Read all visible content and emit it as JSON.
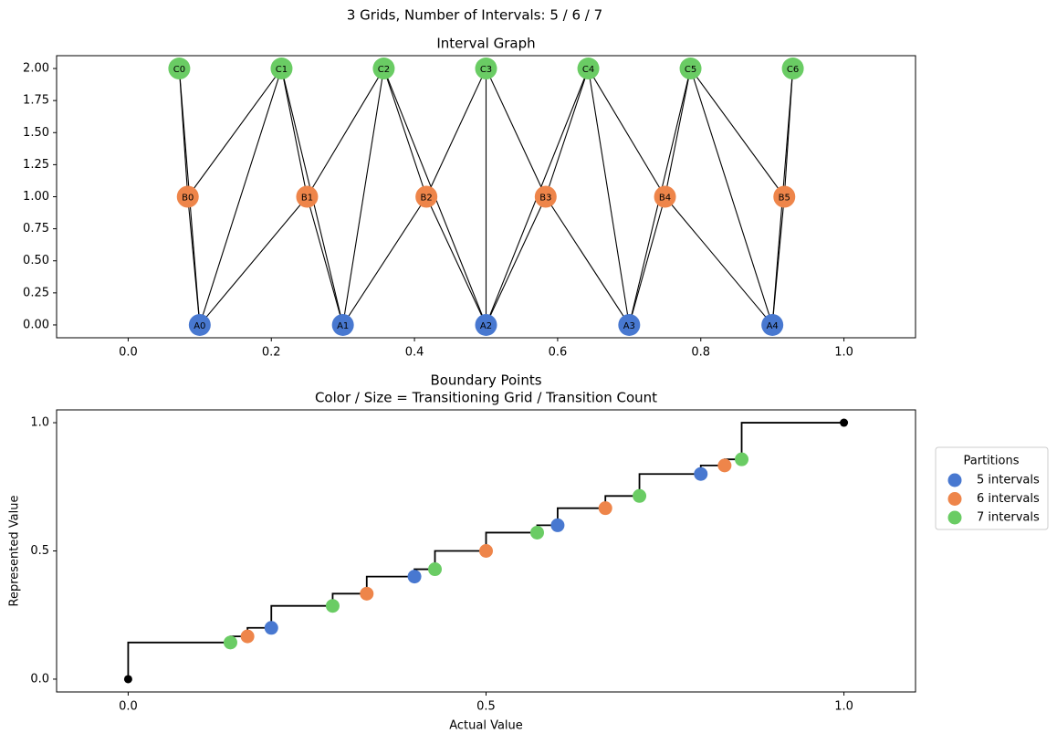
{
  "title": "3 Grids, Number of Intervals: 5 / 6 / 7",
  "chart_data": [
    {
      "type": "graph",
      "title": "Interval Graph",
      "xlim": [
        -0.1,
        1.1
      ],
      "xticks": [
        {
          "value": 0,
          "label": "0.0"
        },
        0.2,
        0.4,
        0.6,
        0.8,
        {
          "value": 1,
          "label": "1.0"
        }
      ],
      "ylim": [
        -0.1,
        2.1
      ],
      "yticks": [
        {
          "value": 0,
          "label": "0.00"
        },
        {
          "value": 0.25,
          "label": "0.25"
        },
        {
          "value": 0.5,
          "label": "0.50"
        },
        {
          "value": 0.75,
          "label": "0.75"
        },
        {
          "value": 1,
          "label": "1.00"
        },
        {
          "value": 1.25,
          "label": "1.25"
        },
        {
          "value": 1.5,
          "label": "1.50"
        },
        {
          "value": 1.75,
          "label": "1.75"
        },
        {
          "value": 2,
          "label": "2.00"
        }
      ],
      "nodes": [
        {
          "label": "A0",
          "x": 0.1,
          "y": 0,
          "color": "#4878d0"
        },
        {
          "label": "A1",
          "x": 0.3,
          "y": 0,
          "color": "#4878d0"
        },
        {
          "label": "A2",
          "x": 0.5,
          "y": 0,
          "color": "#4878d0"
        },
        {
          "label": "A3",
          "x": 0.7,
          "y": 0,
          "color": "#4878d0"
        },
        {
          "label": "A4",
          "x": 0.9,
          "y": 0,
          "color": "#4878d0"
        },
        {
          "label": "B0",
          "x": 0.0833,
          "y": 1,
          "color": "#ee854a"
        },
        {
          "label": "B1",
          "x": 0.25,
          "y": 1,
          "color": "#ee854a"
        },
        {
          "label": "B2",
          "x": 0.4167,
          "y": 1,
          "color": "#ee854a"
        },
        {
          "label": "B3",
          "x": 0.5833,
          "y": 1,
          "color": "#ee854a"
        },
        {
          "label": "B4",
          "x": 0.75,
          "y": 1,
          "color": "#ee854a"
        },
        {
          "label": "B5",
          "x": 0.9167,
          "y": 1,
          "color": "#ee854a"
        },
        {
          "label": "C0",
          "x": 0.0714,
          "y": 2,
          "color": "#6acc64"
        },
        {
          "label": "C1",
          "x": 0.2143,
          "y": 2,
          "color": "#6acc64"
        },
        {
          "label": "C2",
          "x": 0.3571,
          "y": 2,
          "color": "#6acc64"
        },
        {
          "label": "C3",
          "x": 0.5,
          "y": 2,
          "color": "#6acc64"
        },
        {
          "label": "C4",
          "x": 0.6429,
          "y": 2,
          "color": "#6acc64"
        },
        {
          "label": "C5",
          "x": 0.7857,
          "y": 2,
          "color": "#6acc64"
        },
        {
          "label": "C6",
          "x": 0.9286,
          "y": 2,
          "color": "#6acc64"
        }
      ],
      "edges": [
        [
          0,
          5
        ],
        [
          0,
          6
        ],
        [
          1,
          6
        ],
        [
          1,
          7
        ],
        [
          2,
          7
        ],
        [
          2,
          8
        ],
        [
          3,
          8
        ],
        [
          3,
          9
        ],
        [
          4,
          9
        ],
        [
          4,
          10
        ],
        [
          0,
          11
        ],
        [
          0,
          12
        ],
        [
          1,
          12
        ],
        [
          1,
          13
        ],
        [
          2,
          13
        ],
        [
          2,
          14
        ],
        [
          2,
          15
        ],
        [
          3,
          15
        ],
        [
          3,
          16
        ],
        [
          4,
          16
        ],
        [
          4,
          17
        ],
        [
          5,
          11
        ],
        [
          5,
          12
        ],
        [
          6,
          12
        ],
        [
          6,
          13
        ],
        [
          7,
          13
        ],
        [
          7,
          14
        ],
        [
          8,
          14
        ],
        [
          8,
          15
        ],
        [
          9,
          15
        ],
        [
          9,
          16
        ],
        [
          10,
          16
        ],
        [
          10,
          17
        ]
      ]
    },
    {
      "type": "step",
      "title": "Boundary Points",
      "subtitle": "Color / Size = Transitioning Grid / Transition Count",
      "x_label": "Actual Value",
      "y_label": "Represented Value",
      "xlim": [
        -0.1,
        1.1
      ],
      "xticks": [
        {
          "value": 0,
          "label": "0.0"
        },
        0.5,
        {
          "value": 1,
          "label": "1.0"
        }
      ],
      "ylim": [
        -0.05,
        1.05
      ],
      "yticks": [
        {
          "value": 0,
          "label": "0.0"
        },
        0.5,
        {
          "value": 1,
          "label": "1.0"
        }
      ],
      "step": {
        "color": "#000000",
        "x": [
          0,
          0.1429,
          0.1667,
          0.2,
          0.2857,
          0.3333,
          0.4,
          0.4286,
          0.5,
          0.5714,
          0.6,
          0.6667,
          0.7143,
          0.8,
          0.8333,
          0.8571,
          1
        ],
        "y": [
          0,
          0.1429,
          0.1667,
          0.2,
          0.2857,
          0.3333,
          0.4,
          0.4286,
          0.5,
          0.5714,
          0.6,
          0.6667,
          0.7143,
          0.8,
          0.8333,
          0.8571,
          1
        ]
      },
      "endpoints": {
        "color": "#000000",
        "x": [
          0,
          1
        ],
        "y": [
          0,
          1
        ]
      },
      "legend_title": "Partitions",
      "series": [
        {
          "name": "5 intervals",
          "color": "#4878d0",
          "x": [
            0.2,
            0.4,
            0.6,
            0.8
          ],
          "values": [
            0.2,
            0.4,
            0.6,
            0.8
          ]
        },
        {
          "name": "6 intervals",
          "color": "#ee854a",
          "x": [
            0.1667,
            0.3333,
            0.5,
            0.6667,
            0.8333
          ],
          "values": [
            0.1667,
            0.3333,
            0.5,
            0.6667,
            0.8333
          ]
        },
        {
          "name": "7 intervals",
          "color": "#6acc64",
          "x": [
            0.1429,
            0.2857,
            0.4286,
            0.5714,
            0.7143,
            0.8571
          ],
          "values": [
            0.1429,
            0.2857,
            0.4286,
            0.5714,
            0.7143,
            0.8571
          ]
        }
      ]
    }
  ]
}
